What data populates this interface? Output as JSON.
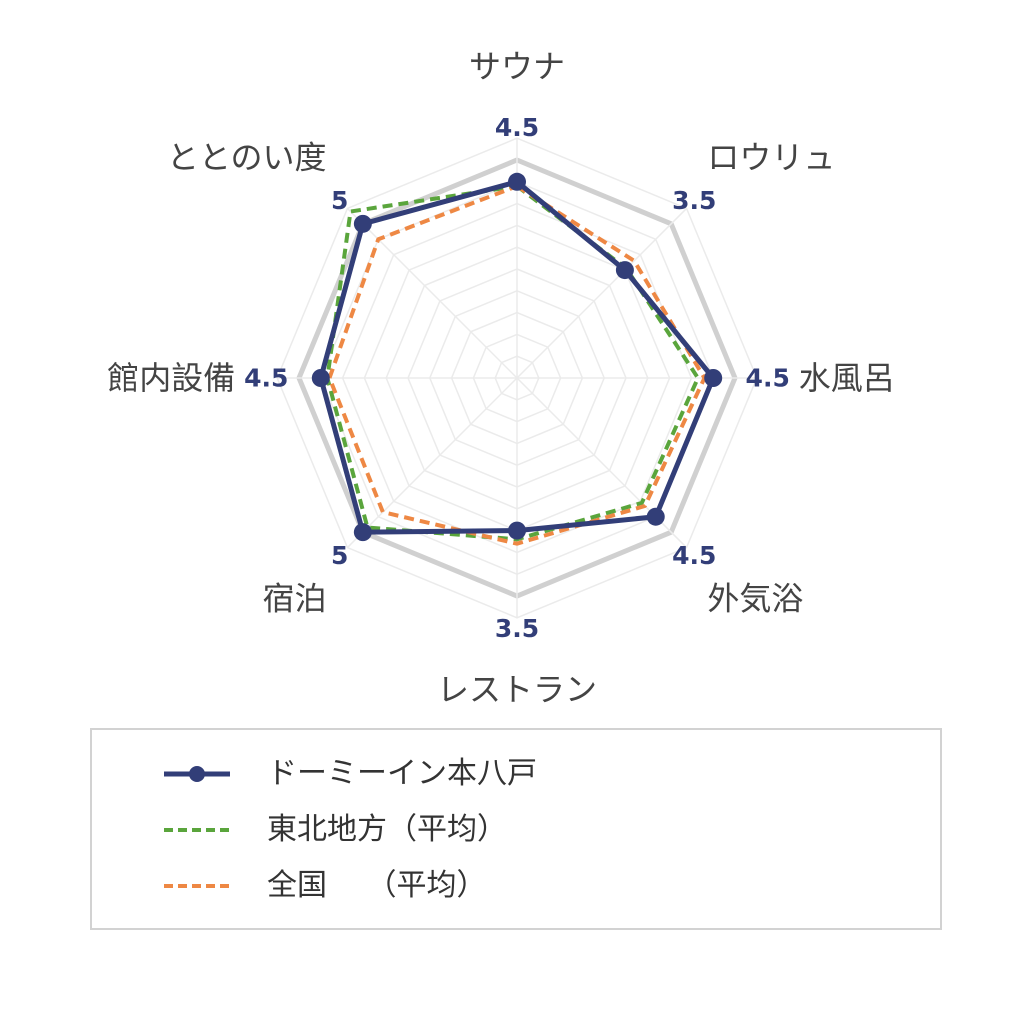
{
  "chart_data": {
    "type": "radar",
    "categories": [
      "サウナ",
      "ロウリュ",
      "水風呂",
      "外気浴",
      "レストラン",
      "宿泊",
      "館内設備",
      "ととのい度"
    ],
    "rlim": [
      0,
      5
    ],
    "grid": true,
    "legend_position": "bottom",
    "series": [
      {
        "name": "ドーミーイン本八戸",
        "values": [
          4.5,
          3.5,
          4.5,
          4.5,
          3.5,
          5,
          4.5,
          5
        ],
        "value_labels": [
          "4.5",
          "3.5",
          "4.5",
          "4.5",
          "3.5",
          "5",
          "4.5",
          "5"
        ],
        "color": "#323e78",
        "style": "solid-markers"
      },
      {
        "name": "東北地方（平均）",
        "values": [
          4.4,
          3.55,
          4.15,
          4.05,
          3.7,
          4.85,
          4.35,
          5.4
        ],
        "color": "#5aa53c",
        "style": "dashed"
      },
      {
        "name": "全国　 （平均）",
        "values": [
          4.4,
          3.8,
          4.3,
          4.15,
          3.8,
          4.35,
          4.3,
          4.5
        ],
        "color": "#ee8844",
        "style": "dashed"
      }
    ]
  },
  "colors": {
    "max_ring": "#d0d0d0",
    "grid": "#ebebeb"
  }
}
